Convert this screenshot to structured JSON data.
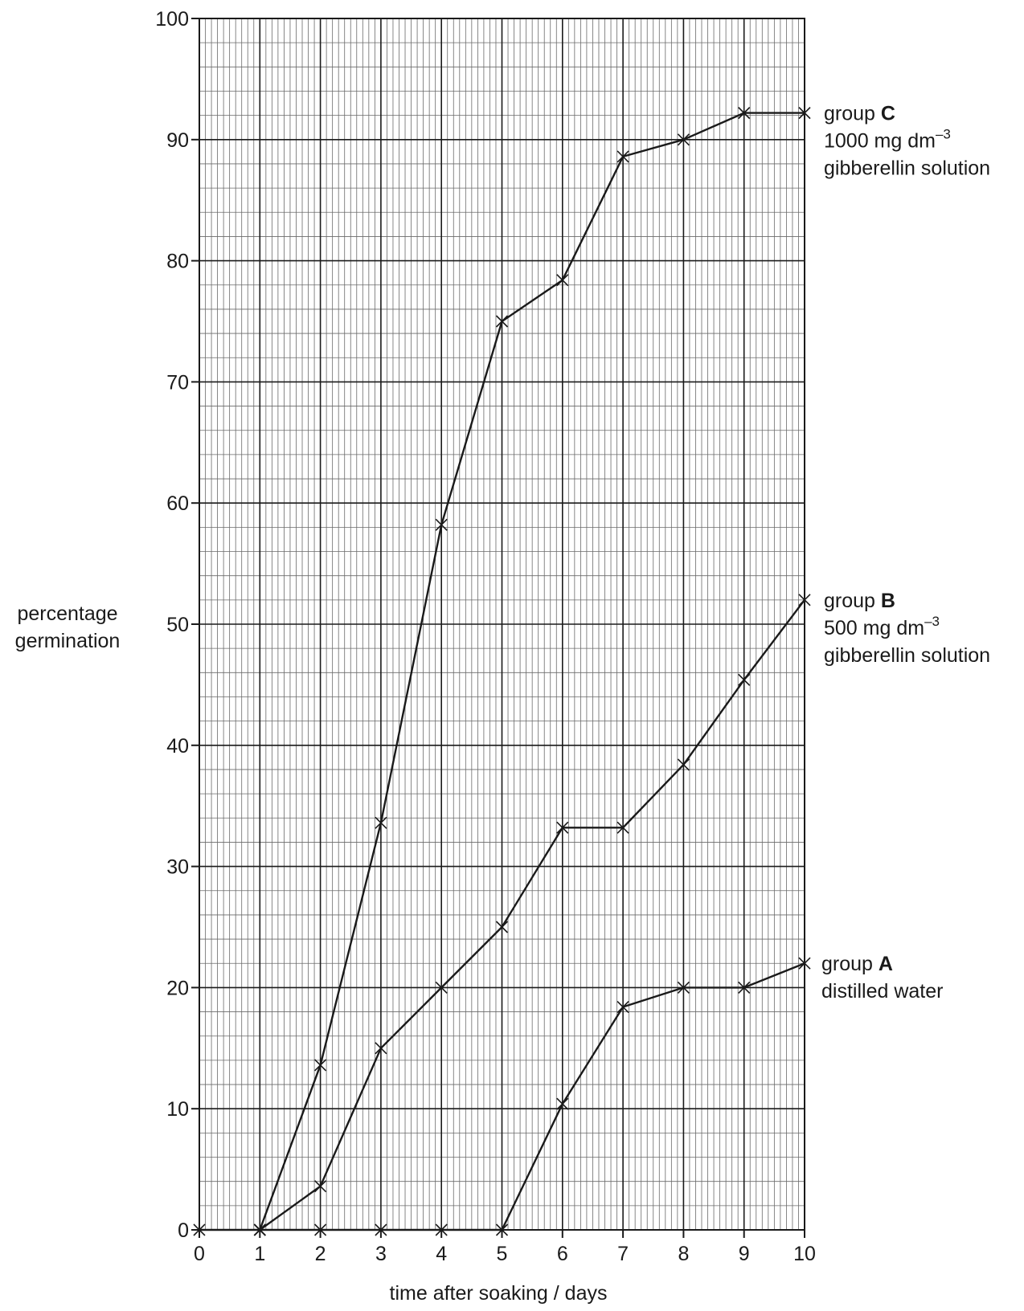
{
  "chart_data": {
    "type": "line",
    "xlabel": "time after soaking / days",
    "ylabel_lines": [
      "percentage",
      "germination"
    ],
    "xlim": [
      0,
      10
    ],
    "ylim": [
      0,
      100
    ],
    "x_ticks": [
      0,
      1,
      2,
      3,
      4,
      5,
      6,
      7,
      8,
      9,
      10
    ],
    "y_ticks": [
      0,
      10,
      20,
      30,
      40,
      50,
      60,
      70,
      80,
      90,
      100
    ],
    "grid": true,
    "x": [
      0,
      1,
      2,
      3,
      4,
      5,
      6,
      7,
      8,
      9,
      10
    ],
    "series": [
      {
        "id": "A",
        "label_prefix": "group",
        "label_letter": "A",
        "label_lines": [
          {
            "text": "distilled water",
            "sup": ""
          }
        ],
        "x": [
          0,
          1,
          2,
          3,
          4,
          5,
          6,
          7,
          8,
          9,
          10
        ],
        "values": [
          0,
          0,
          0,
          0,
          0,
          0,
          10.4,
          18.4,
          20,
          20,
          22
        ]
      },
      {
        "id": "B",
        "label_prefix": "group",
        "label_letter": "B",
        "label_lines": [
          {
            "text": "500 mg dm",
            "sup": "–3"
          },
          {
            "text": "gibberellin solution",
            "sup": ""
          }
        ],
        "x": [
          1,
          2,
          3,
          4,
          5,
          6,
          7,
          8,
          9,
          10
        ],
        "values": [
          0,
          3.6,
          15,
          20,
          25,
          33.2,
          33.2,
          38.4,
          45.4,
          52
        ]
      },
      {
        "id": "C",
        "label_prefix": "group",
        "label_letter": "C",
        "label_lines": [
          {
            "text": "1000 mg dm",
            "sup": "–3"
          },
          {
            "text": "gibberellin solution",
            "sup": ""
          }
        ],
        "x": [
          1,
          2,
          3,
          4,
          5,
          6,
          7,
          8,
          9,
          10
        ],
        "values": [
          0,
          13.6,
          33.6,
          58.2,
          75,
          78.4,
          88.6,
          90,
          92.2,
          92.2
        ]
      }
    ]
  }
}
